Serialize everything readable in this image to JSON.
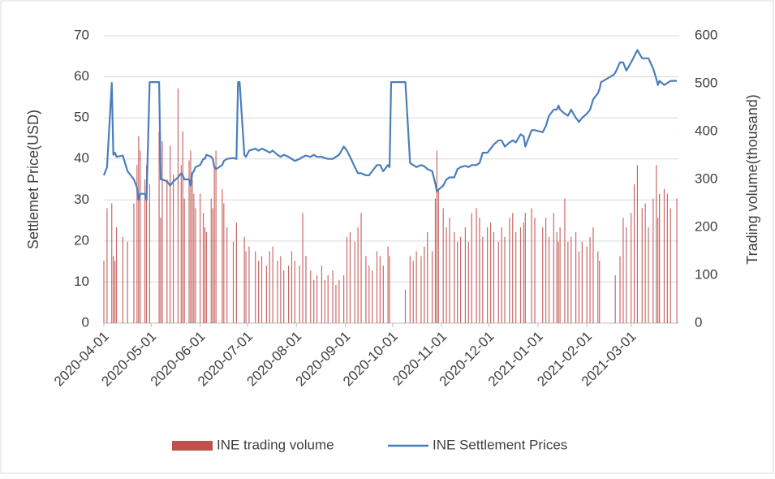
{
  "chart_data": {
    "type": "bar-line",
    "x": [
      "2020-04-01",
      "2020-04-03",
      "2020-04-06",
      "2020-04-07",
      "2020-04-08",
      "2020-04-09",
      "2020-04-13",
      "2020-04-16",
      "2020-04-20",
      "2020-04-22",
      "2020-04-23",
      "2020-04-24",
      "2020-04-27",
      "2020-04-28",
      "2020-04-30",
      "2020-05-06",
      "2020-05-07",
      "2020-05-08",
      "2020-05-11",
      "2020-05-13",
      "2020-05-15",
      "2020-05-18",
      "2020-05-20",
      "2020-05-21",
      "2020-05-22",
      "2020-05-25",
      "2020-05-26",
      "2020-05-27",
      "2020-05-28",
      "2020-05-29",
      "2020-06-01",
      "2020-06-03",
      "2020-06-04",
      "2020-06-05",
      "2020-06-08",
      "2020-06-09",
      "2020-06-10",
      "2020-06-11",
      "2020-06-15",
      "2020-06-16",
      "2020-06-18",
      "2020-06-22",
      "2020-06-24",
      "2020-06-25",
      "2020-06-26",
      "2020-06-29",
      "2020-06-30",
      "2020-07-02",
      "2020-07-06",
      "2020-07-08",
      "2020-07-10",
      "2020-07-13",
      "2020-07-15",
      "2020-07-17",
      "2020-07-20",
      "2020-07-22",
      "2020-07-24",
      "2020-07-27",
      "2020-07-29",
      "2020-07-31",
      "2020-08-03",
      "2020-08-05",
      "2020-08-07",
      "2020-08-10",
      "2020-08-12",
      "2020-08-14",
      "2020-08-17",
      "2020-08-19",
      "2020-08-21",
      "2020-08-24",
      "2020-08-26",
      "2020-08-28",
      "2020-08-31",
      "2020-09-02",
      "2020-09-04",
      "2020-09-07",
      "2020-09-09",
      "2020-09-11",
      "2020-09-14",
      "2020-09-16",
      "2020-09-18",
      "2020-09-21",
      "2020-09-23",
      "2020-09-25",
      "2020-09-28",
      "2020-09-29",
      "2020-09-30",
      "2020-10-09",
      "2020-10-12",
      "2020-10-14",
      "2020-10-16",
      "2020-10-19",
      "2020-10-21",
      "2020-10-23",
      "2020-10-26",
      "2020-10-28",
      "2020-10-29",
      "2020-10-30",
      "2020-11-02",
      "2020-11-04",
      "2020-11-06",
      "2020-11-09",
      "2020-11-11",
      "2020-11-13",
      "2020-11-16",
      "2020-11-18",
      "2020-11-20",
      "2020-11-23",
      "2020-11-25",
      "2020-11-27",
      "2020-11-30",
      "2020-12-02",
      "2020-12-04",
      "2020-12-07",
      "2020-12-09",
      "2020-12-11",
      "2020-12-14",
      "2020-12-16",
      "2020-12-18",
      "2020-12-21",
      "2020-12-23",
      "2020-12-24",
      "2020-12-28",
      "2020-12-30",
      "2021-01-04",
      "2021-01-06",
      "2021-01-08",
      "2021-01-11",
      "2021-01-13",
      "2021-01-14",
      "2021-01-15",
      "2021-01-18",
      "2021-01-20",
      "2021-01-22",
      "2021-01-25",
      "2021-01-27",
      "2021-01-29",
      "2021-02-01",
      "2021-02-03",
      "2021-02-05",
      "2021-02-08",
      "2021-02-09",
      "2021-02-10",
      "2021-02-18",
      "2021-02-19",
      "2021-02-22",
      "2021-02-24",
      "2021-02-26",
      "2021-03-01",
      "2021-03-03",
      "2021-03-05",
      "2021-03-08",
      "2021-03-10",
      "2021-03-12",
      "2021-03-15",
      "2021-03-17",
      "2021-03-18",
      "2021-03-19",
      "2021-03-22",
      "2021-03-24",
      "2021-03-26",
      "2021-03-30"
    ],
    "series": [
      {
        "name": "INE trading volume",
        "color": "#c0504d",
        "axis": "y2",
        "values": [
          130,
          240,
          250,
          140,
          130,
          200,
          180,
          170,
          250,
          330,
          390,
          360,
          300,
          330,
          290,
          400,
          220,
          380,
          300,
          370,
          310,
          490,
          330,
          400,
          260,
          340,
          360,
          300,
          270,
          240,
          270,
          230,
          200,
          190,
          260,
          240,
          330,
          360,
          280,
          250,
          200,
          170,
          210,
          null,
          null,
          180,
          150,
          160,
          150,
          130,
          140,
          120,
          150,
          160,
          130,
          140,
          110,
          120,
          150,
          130,
          120,
          230,
          140,
          110,
          90,
          100,
          120,
          90,
          100,
          110,
          80,
          90,
          100,
          180,
          190,
          170,
          200,
          230,
          140,
          120,
          110,
          150,
          140,
          120,
          160,
          140,
          null,
          70,
          140,
          130,
          150,
          140,
          160,
          190,
          150,
          260,
          360,
          280,
          240,
          200,
          220,
          190,
          170,
          180,
          200,
          170,
          230,
          240,
          220,
          180,
          200,
          210,
          190,
          170,
          200,
          180,
          220,
          230,
          190,
          200,
          210,
          230,
          240,
          220,
          200,
          220,
          180,
          230,
          190,
          170,
          200,
          260,
          170,
          180,
          190,
          150,
          170,
          160,
          180,
          200,
          150,
          130,
          null,
          null,
          100,
          140,
          220,
          200,
          230,
          290,
          330,
          240,
          250,
          200,
          260,
          330,
          220,
          270,
          280,
          270,
          240,
          260
        ]
      },
      {
        "name": "INE Settlement Prices",
        "color": "#4a7ebb",
        "values": [
          36,
          38,
          58.5,
          41,
          41.5,
          40.5,
          40.8,
          37,
          35,
          33,
          30,
          31.5,
          31.5,
          30,
          58.7,
          58.7,
          35,
          35,
          34.5,
          33.5,
          34.5,
          35.5,
          36.5,
          36,
          35,
          35,
          33.5,
          36.5,
          37,
          38,
          38.5,
          40,
          40,
          41,
          40.5,
          40,
          38,
          37.5,
          38.5,
          39.5,
          40,
          40.2,
          40,
          58.7,
          58.7,
          41,
          40.5,
          42,
          42.5,
          42,
          42.5,
          42,
          41.5,
          42,
          41,
          40.5,
          41,
          40.5,
          40,
          39.5,
          40,
          40.5,
          40.8,
          40.5,
          41,
          40.5,
          40.5,
          40.2,
          40,
          40,
          40.5,
          41,
          43,
          42,
          40.5,
          38,
          36.5,
          36.5,
          36,
          36,
          37,
          38.5,
          38.5,
          37,
          38.5,
          38,
          58.7,
          58.7,
          39,
          38.5,
          38,
          38.5,
          38.2,
          37.5,
          37,
          34,
          32,
          32.5,
          33.5,
          35,
          35.5,
          35.5,
          37.5,
          38,
          38.3,
          38,
          38.5,
          38.5,
          39,
          41.5,
          41.5,
          42.5,
          43.5,
          44.5,
          44.5,
          43,
          44,
          44.5,
          44,
          46,
          45.5,
          43,
          47,
          47,
          46.5,
          48,
          50.5,
          52,
          52,
          53,
          52,
          51,
          50.5,
          52,
          50,
          49,
          50,
          51,
          52,
          54.5,
          56,
          57,
          58.7,
          60.5,
          61,
          63.5,
          63.5,
          61.5,
          63.5,
          65,
          66.5,
          64.5,
          64.5,
          64.5,
          62,
          59.5,
          58,
          59,
          58,
          58.5,
          59,
          59
        ]
      }
    ],
    "xlim": [
      "2020-04-01",
      "2021-03-31"
    ],
    "xticks": [
      "2020-04-01",
      "2020-05-01",
      "2020-06-01",
      "2020-07-01",
      "2020-08-01",
      "2020-09-01",
      "2020-10-01",
      "2020-11-01",
      "2020-12-01",
      "2021-01-01",
      "2021-02-01",
      "2021-03-01"
    ],
    "ylim": [
      0,
      70
    ],
    "yticks": [
      0,
      10,
      20,
      30,
      40,
      50,
      60,
      70
    ],
    "y2lim": [
      0,
      600
    ],
    "y2ticks": [
      0,
      100,
      200,
      300,
      400,
      500,
      600
    ],
    "ylabel": "Settlemet Price(USD)",
    "y2label": "Trading volume(thousand)",
    "grid": true,
    "legend": "bottom"
  }
}
